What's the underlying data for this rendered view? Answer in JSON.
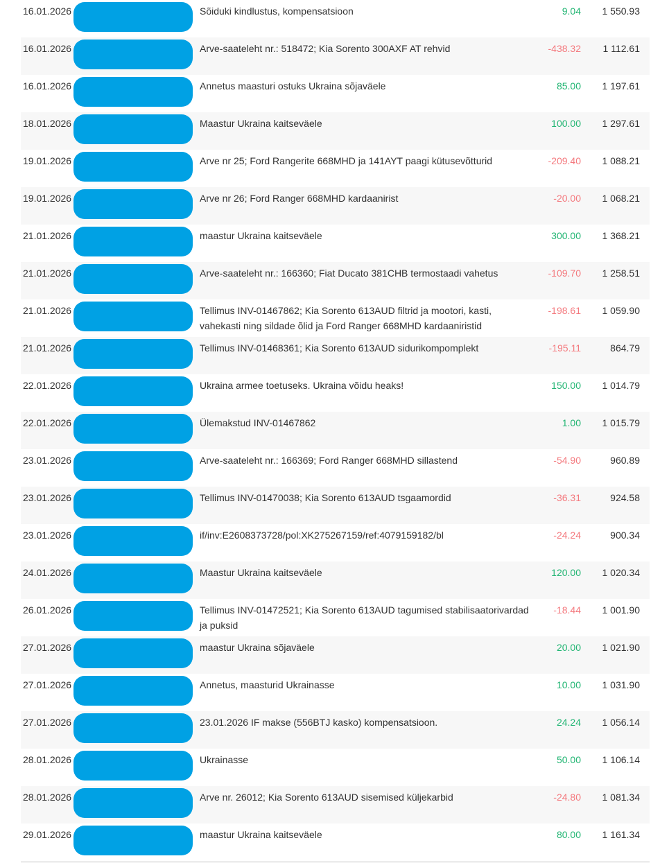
{
  "colors": {
    "positive_amount": "#22b573",
    "negative_amount": "#f4797e",
    "redaction_blue": "#00a1e4",
    "alt_row_background": "#f7f7f7",
    "text": "#333333"
  },
  "transactions": [
    {
      "date": "16.01.2026",
      "description": "Sõiduki kindlustus, kompensatsioon",
      "amount": "9.04",
      "balance": "1 550.93"
    },
    {
      "date": "16.01.2026",
      "description": "Arve-saateleht nr.: 518472; Kia Sorento 300AXF AT rehvid",
      "amount": "-438.32",
      "balance": "1 112.61"
    },
    {
      "date": "16.01.2026",
      "description": "Annetus maasturi ostuks Ukraina sõjaväele",
      "amount": "85.00",
      "balance": "1 197.61"
    },
    {
      "date": "18.01.2026",
      "description": "Maastur Ukraina kaitseväele",
      "amount": "100.00",
      "balance": "1 297.61"
    },
    {
      "date": "19.01.2026",
      "description": "Arve nr 25; Ford Rangerite 668MHD ja 141AYT paagi kütusevõtturid",
      "amount": "-209.40",
      "balance": "1 088.21"
    },
    {
      "date": "19.01.2026",
      "description": "Arve nr 26; Ford Ranger 668MHD kardaanirist",
      "amount": "-20.00",
      "balance": "1 068.21"
    },
    {
      "date": "21.01.2026",
      "description": "maastur Ukraina kaitseväele",
      "amount": "300.00",
      "balance": "1 368.21"
    },
    {
      "date": "21.01.2026",
      "description": "Arve-saateleht nr.: 166360; Fiat Ducato 381CHB termostaadi vahetus",
      "amount": "-109.70",
      "balance": "1 258.51"
    },
    {
      "date": "21.01.2026",
      "description": "Tellimus INV-01467862; Kia Sorento 613AUD filtrid ja mootori, kasti, vahekasti ning sildade õlid ja Ford Ranger 668MHD kardaaniristid",
      "amount": "-198.61",
      "balance": "1 059.90"
    },
    {
      "date": "21.01.2026",
      "description": "Tellimus INV-01468361; Kia Sorento 613AUD sidurikompomplekt",
      "amount": "-195.11",
      "balance": "864.79"
    },
    {
      "date": "22.01.2026",
      "description": "Ukraina armee toetuseks. Ukraina võidu heaks!",
      "amount": "150.00",
      "balance": "1 014.79"
    },
    {
      "date": "22.01.2026",
      "description": "Ülemakstud INV-01467862",
      "amount": "1.00",
      "balance": "1 015.79"
    },
    {
      "date": "23.01.2026",
      "description": "Arve-saateleht nr.: 166369; Ford Ranger 668MHD sillastend",
      "amount": "-54.90",
      "balance": "960.89"
    },
    {
      "date": "23.01.2026",
      "description": "Tellimus INV-01470038; Kia Sorento 613AUD tsgaamordid",
      "amount": "-36.31",
      "balance": "924.58"
    },
    {
      "date": "23.01.2026",
      "description": "if/inv:E2608373728/pol:XK275267159/ref:4079159182/bl",
      "amount": "-24.24",
      "balance": "900.34"
    },
    {
      "date": "24.01.2026",
      "description": "Maastur Ukraina kaitseväele",
      "amount": "120.00",
      "balance": "1 020.34"
    },
    {
      "date": "26.01.2026",
      "description": "Tellimus INV-01472521; Kia Sorento 613AUD tagumised stabilisaatorivardad ja puksid",
      "amount": "-18.44",
      "balance": "1 001.90"
    },
    {
      "date": "27.01.2026",
      "description": "maastur Ukraina sõjaväele",
      "amount": "20.00",
      "balance": "1 021.90"
    },
    {
      "date": "27.01.2026",
      "description": "Annetus, maasturid Ukrainasse",
      "amount": "10.00",
      "balance": "1 031.90"
    },
    {
      "date": "27.01.2026",
      "description": "23.01.2026 IF makse (556BTJ kasko) kompensatsioon.",
      "amount": "24.24",
      "balance": "1 056.14"
    },
    {
      "date": "28.01.2026",
      "description": "Ukrainasse",
      "amount": "50.00",
      "balance": "1 106.14"
    },
    {
      "date": "28.01.2026",
      "description": "Arve nr. 26012; Kia Sorento 613AUD sisemised küljekarbid",
      "amount": "-24.80",
      "balance": "1 081.34"
    },
    {
      "date": "29.01.2026",
      "description": "maastur Ukraina kaitseväele",
      "amount": "80.00",
      "balance": "1 161.34"
    }
  ]
}
